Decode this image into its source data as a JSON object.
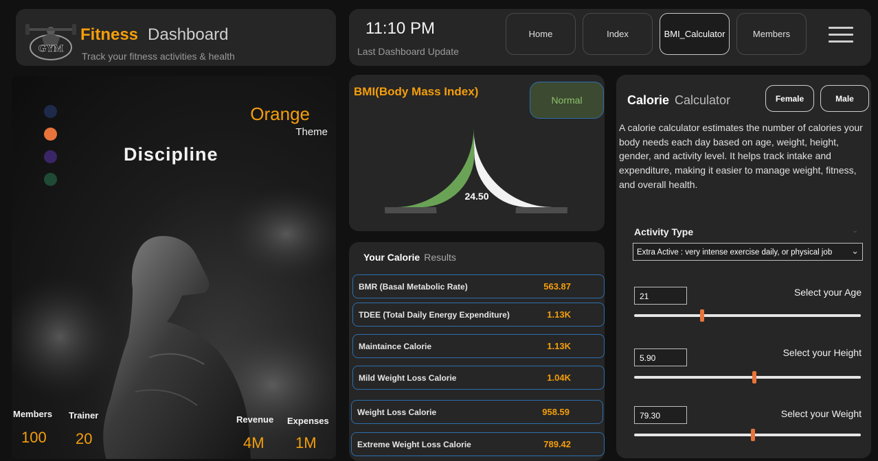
{
  "header": {
    "logo_text": "GYM",
    "title_primary": "Fitness",
    "title_secondary": "Dashboard",
    "subtitle": "Track your fitness activities & health"
  },
  "topbar": {
    "time": "11:10 PM",
    "time_label": "Last Dashboard Update",
    "nav": [
      {
        "label": "Home",
        "active": false
      },
      {
        "label": "Index",
        "active": false
      },
      {
        "label": "BMI_Calculator",
        "active": true
      },
      {
        "label": "Members",
        "active": false
      }
    ],
    "menu_icon": "hamburger-menu-icon"
  },
  "hero": {
    "theme_name": "Orange",
    "theme_label": "Theme",
    "theme_dots": [
      {
        "name": "navy",
        "color": "#1e2a4a"
      },
      {
        "name": "orange",
        "color": "#e8743b"
      },
      {
        "name": "purple",
        "color": "#3a2566"
      },
      {
        "name": "green",
        "color": "#1f4a36"
      }
    ],
    "headline": "Discipline",
    "stats": [
      {
        "label": "Members",
        "value": "100"
      },
      {
        "label": "Trainer",
        "value": "20"
      },
      {
        "label": "Revenue",
        "value": "4M"
      },
      {
        "label": "Expenses",
        "value": "1M"
      }
    ]
  },
  "bmi": {
    "title": "BMI(Body Mass Index)",
    "status": "Normal",
    "value": "24.50",
    "value_fraction": 0.49,
    "colors": {
      "fill": "#6aa356",
      "remaining": "#f2f2f2",
      "outer": "#4d4d4d"
    }
  },
  "results": {
    "title_bold": "Your Calorie",
    "title_light": "Results",
    "rows": [
      {
        "label": "BMR (Basal Metabolic Rate)",
        "value": "563.87"
      },
      {
        "label": "TDEE (Total Daily Energy Expenditure)",
        "value": "1.13K"
      },
      {
        "label": "Maintaince Calorie",
        "value": "1.13K"
      },
      {
        "label": "Mild Weight Loss Calorie",
        "value": "1.04K"
      },
      {
        "label": "Weight Loss Calorie",
        "value": "958.59"
      },
      {
        "label": "Extreme Weight Loss Calorie",
        "value": "789.42"
      }
    ]
  },
  "calculator": {
    "title_bold": "Calorie",
    "title_light": "Calculator",
    "gender_buttons": [
      "Female",
      "Male"
    ],
    "description": "A calorie calculator estimates the number of calories your body needs each day based on age, weight, height, gender, and activity level. It helps track intake and expenditure, making it easier to manage weight, fitness, and overall health.",
    "activity_label": "Activity Type",
    "activity_value": "Extra Active : very intense exercise daily, or physical job",
    "sliders": [
      {
        "label": "Select your Age",
        "value": "21",
        "fraction": 0.3
      },
      {
        "label": "Select your Height",
        "value": "5.90",
        "fraction": 0.53
      },
      {
        "label": "Select your Weight",
        "value": "79.30",
        "fraction": 0.525
      }
    ]
  }
}
